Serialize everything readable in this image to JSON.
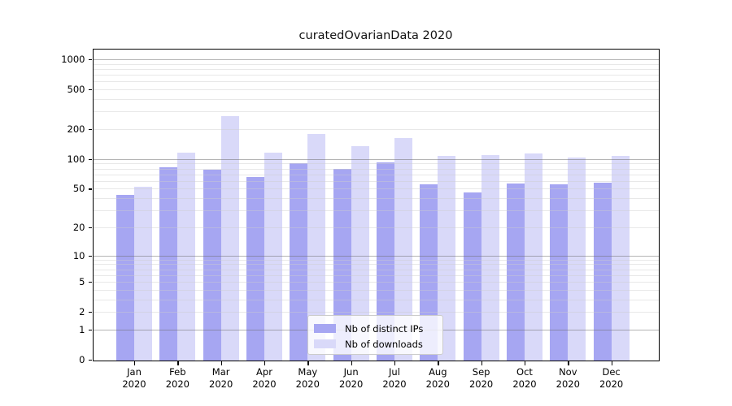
{
  "figure": {
    "title": "curatedOvarianData 2020"
  },
  "chart_data": {
    "type": "bar",
    "title": "curatedOvarianData 2020",
    "categories": [
      "Jan 2020",
      "Feb 2020",
      "Mar 2020",
      "Apr 2020",
      "May 2020",
      "Jun 2020",
      "Jul 2020",
      "Aug 2020",
      "Sep 2020",
      "Oct 2020",
      "Nov 2020",
      "Dec 2020"
    ],
    "series": [
      {
        "name": "Nb of distinct IPs",
        "color": "#a6a6f2",
        "values": [
          43,
          83,
          78,
          66,
          90,
          79,
          92,
          55,
          46,
          57,
          55,
          58
        ]
      },
      {
        "name": "Nb of downloads",
        "color": "#d9d9f9",
        "values": [
          52,
          116,
          268,
          115,
          178,
          135,
          164,
          108,
          109,
          114,
          104,
          108
        ]
      }
    ],
    "yscale": "log1p",
    "yticks": [
      0,
      1,
      2,
      5,
      10,
      20,
      50,
      100,
      200,
      500,
      1000
    ],
    "ylim": [
      0,
      1100
    ],
    "grid": "horizontal major+minor",
    "legend": {
      "position": "lower center",
      "entries": [
        "Nb of distinct IPs",
        "Nb of downloads"
      ]
    }
  }
}
